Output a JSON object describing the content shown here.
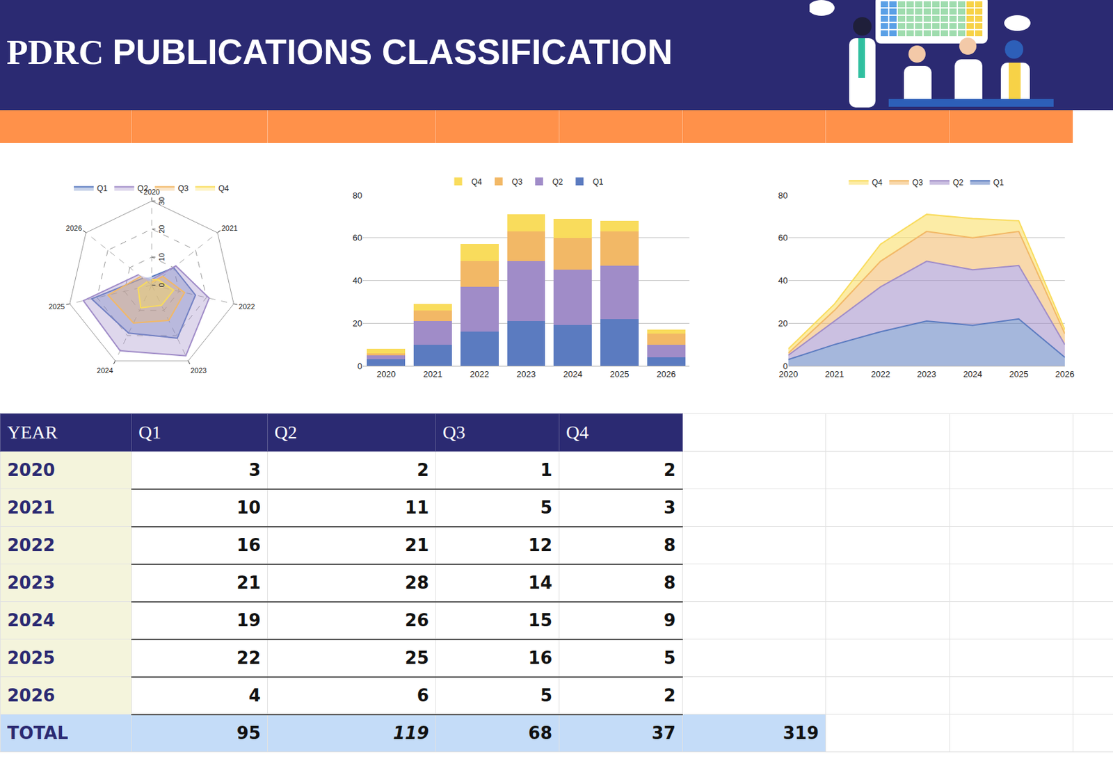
{
  "header": {
    "title": "PDRC PUBLICATIONS CLASSIFICATION"
  },
  "chart_data": [
    {
      "type": "radar",
      "categories": [
        "2020",
        "2021",
        "2022",
        "2023",
        "2024",
        "2025",
        "2026"
      ],
      "series": [
        {
          "name": "Q1",
          "color": "#5b7bc0",
          "values": [
            3,
            10,
            16,
            21,
            19,
            22,
            4
          ]
        },
        {
          "name": "Q2",
          "color": "#a08cc8",
          "values": [
            2,
            11,
            21,
            28,
            26,
            25,
            6
          ]
        },
        {
          "name": "Q3",
          "color": "#f2b866",
          "values": [
            1,
            5,
            12,
            14,
            15,
            16,
            5
          ]
        },
        {
          "name": "Q4",
          "color": "#f9dc5c",
          "values": [
            2,
            3,
            8,
            8,
            9,
            5,
            2
          ]
        }
      ],
      "ylim": [
        0,
        30
      ],
      "yticks": [
        0,
        10,
        20,
        30
      ],
      "grid": true,
      "legend": "top"
    },
    {
      "type": "bar",
      "stacked": true,
      "categories": [
        "2020",
        "2021",
        "2022",
        "2023",
        "2024",
        "2025",
        "2026"
      ],
      "series": [
        {
          "name": "Q1",
          "color": "#5b7bc0",
          "values": [
            3,
            10,
            16,
            21,
            19,
            22,
            4
          ]
        },
        {
          "name": "Q2",
          "color": "#a08cc8",
          "values": [
            2,
            11,
            21,
            28,
            26,
            25,
            6
          ]
        },
        {
          "name": "Q3",
          "color": "#f2b866",
          "values": [
            1,
            5,
            12,
            14,
            15,
            16,
            5
          ]
        },
        {
          "name": "Q4",
          "color": "#f9dc5c",
          "values": [
            2,
            3,
            8,
            8,
            9,
            5,
            2
          ]
        }
      ],
      "ylim": [
        0,
        80
      ],
      "yticks": [
        0,
        20,
        40,
        60,
        80
      ],
      "grid": true,
      "legend": "top"
    },
    {
      "type": "area",
      "stacked": true,
      "categories": [
        "2020",
        "2021",
        "2022",
        "2023",
        "2024",
        "2025",
        "2026"
      ],
      "series": [
        {
          "name": "Q1",
          "color": "#5b7bc0",
          "values": [
            3,
            10,
            16,
            21,
            19,
            22,
            4
          ]
        },
        {
          "name": "Q2",
          "color": "#a08cc8",
          "values": [
            2,
            11,
            21,
            28,
            26,
            25,
            6
          ]
        },
        {
          "name": "Q3",
          "color": "#f2b866",
          "values": [
            1,
            5,
            12,
            14,
            15,
            16,
            5
          ]
        },
        {
          "name": "Q4",
          "color": "#f9dc5c",
          "values": [
            2,
            3,
            8,
            8,
            9,
            5,
            2
          ]
        }
      ],
      "ylim": [
        0,
        80
      ],
      "yticks": [
        0,
        20,
        40,
        60,
        80
      ],
      "grid": true,
      "legend": "top"
    }
  ],
  "table": {
    "header": [
      "YEAR",
      "Q1",
      "Q2",
      "Q3",
      "Q4"
    ],
    "rows": [
      [
        "2020",
        3,
        2,
        1,
        2
      ],
      [
        "2021",
        10,
        11,
        5,
        3
      ],
      [
        "2022",
        16,
        21,
        12,
        8
      ],
      [
        "2023",
        21,
        28,
        14,
        8
      ],
      [
        "2024",
        19,
        26,
        15,
        9
      ],
      [
        "2025",
        22,
        25,
        16,
        5
      ],
      [
        "2026",
        4,
        6,
        5,
        2
      ]
    ],
    "total": {
      "label": "TOTAL",
      "values": [
        95,
        119,
        68,
        37
      ],
      "grand_total": 319
    }
  }
}
